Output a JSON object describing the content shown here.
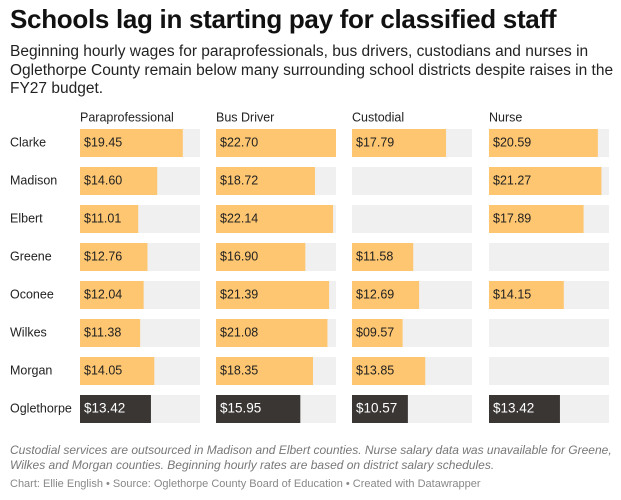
{
  "chart_data": {
    "type": "table-bars",
    "title": "Schools lag in starting pay for classified staff",
    "subtitle": "Beginning hourly wages for paraprofessionals, bus drivers, custodians and nurses in Oglethorpe County remain below many surrounding school districts despite raises in the FY27 budget.",
    "categories": [
      "Clarke",
      "Madison",
      "Elbert",
      "Greene",
      "Oconee",
      "Wilkes",
      "Morgan",
      "Oglethorpe"
    ],
    "highlight": "Oglethorpe",
    "color": "#fec670",
    "highlight_color": "#3a3634",
    "series": [
      {
        "name": "Paraprofessional",
        "values": [
          19.45,
          14.6,
          11.01,
          12.76,
          12.04,
          11.38,
          14.05,
          13.42
        ],
        "value_labels": [
          "$19.45",
          "$14.60",
          "$11.01",
          "$12.76",
          "$12.04",
          "$11.38",
          "$14.05",
          "$13.42"
        ]
      },
      {
        "name": "Bus Driver",
        "values": [
          22.7,
          18.72,
          22.14,
          16.9,
          21.39,
          21.08,
          18.35,
          15.95
        ],
        "value_labels": [
          "$22.70",
          "$18.72",
          "$22.14",
          "$16.90",
          "$21.39",
          "$21.08",
          "$18.35",
          "$15.95"
        ]
      },
      {
        "name": "Custodial",
        "values": [
          17.79,
          null,
          null,
          11.58,
          12.69,
          9.57,
          13.85,
          10.57
        ],
        "value_labels": [
          "$17.79",
          null,
          null,
          "$11.58",
          "$12.69",
          "$09.57",
          "$13.85",
          "$10.57"
        ]
      },
      {
        "name": "Nurse",
        "values": [
          20.59,
          21.27,
          17.89,
          null,
          14.15,
          null,
          null,
          13.42
        ],
        "value_labels": [
          "$20.59",
          "$21.27",
          "$17.89",
          null,
          "$14.15",
          null,
          null,
          "$13.42"
        ]
      }
    ],
    "notes": "Custodial services are outsourced in Madison and Elbert counties. Nurse salary data was unavailable for Greene, Wilkes and Morgan counties. Beginning hourly rates are based on district salary schedules.",
    "byline": "Chart: Ellie English • Source: Oglethorpe County Board of Education • Created with Datawrapper"
  }
}
